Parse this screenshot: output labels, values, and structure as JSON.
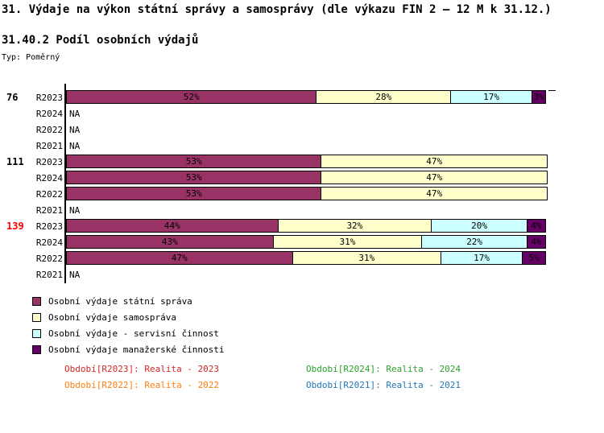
{
  "title": "31. Výdaje na výkon státní správy a samosprávy (dle výkazu FIN 2 – 12 M k 31.12.)",
  "subtitle": "31.40.2 Podíl osobních výdajů",
  "type_label": "Typ: Poměrný",
  "na_label": "NA",
  "chart_data": {
    "type": "bar",
    "orientation": "horizontal",
    "stacked": true,
    "unit": "%",
    "xlim": [
      0,
      100
    ],
    "series_names": [
      "Osobní výdaje státní správa",
      "Osobní výdaje samospráva",
      "Osobní výdaje - servisní činnost",
      "Osobní výdaje manažerské činnosti"
    ],
    "series_colors": [
      "#993366",
      "#FFFFCC",
      "#CCFFFF",
      "#660066"
    ],
    "groups": [
      {
        "label": "76",
        "label_color": "#000000",
        "rows": [
          {
            "period": "R2023",
            "values": [
              52,
              28,
              17,
              3
            ]
          },
          {
            "period": "R2024",
            "values": null
          },
          {
            "period": "R2022",
            "values": null
          },
          {
            "period": "R2021",
            "values": null
          }
        ]
      },
      {
        "label": "111",
        "label_color": "#000000",
        "rows": [
          {
            "period": "R2023",
            "values": [
              53,
              47,
              0,
              0
            ]
          },
          {
            "period": "R2024",
            "values": [
              53,
              47,
              0,
              0
            ]
          },
          {
            "period": "R2022",
            "values": [
              53,
              47,
              0,
              0
            ]
          },
          {
            "period": "R2021",
            "values": null
          }
        ]
      },
      {
        "label": "139",
        "label_color": "#FF0000",
        "rows": [
          {
            "period": "R2023",
            "values": [
              44,
              32,
              20,
              4
            ]
          },
          {
            "period": "R2024",
            "values": [
              43,
              31,
              22,
              4
            ]
          },
          {
            "period": "R2022",
            "values": [
              47,
              31,
              17,
              5
            ]
          },
          {
            "period": "R2021",
            "values": null
          }
        ]
      }
    ]
  },
  "legend": [
    {
      "label": "Osobní výdaje státní správa",
      "color": "#993366"
    },
    {
      "label": "Osobní výdaje samospráva",
      "color": "#FFFFCC"
    },
    {
      "label": "Osobní výdaje - servisní činnost",
      "color": "#CCFFFF"
    },
    {
      "label": "Osobní výdaje manažerské činnosti",
      "color": "#660066"
    }
  ],
  "periods_footer": [
    {
      "text": "Období[R2023]: Realita - 2023",
      "color": "#D62728"
    },
    {
      "text": "Období[R2024]: Realita - 2024",
      "color": "#2CA02C"
    },
    {
      "text": "Období[R2022]: Realita - 2022",
      "color": "#FF7F0E"
    },
    {
      "text": "Období[R2021]: Realita - 2021",
      "color": "#1F77B4"
    }
  ]
}
